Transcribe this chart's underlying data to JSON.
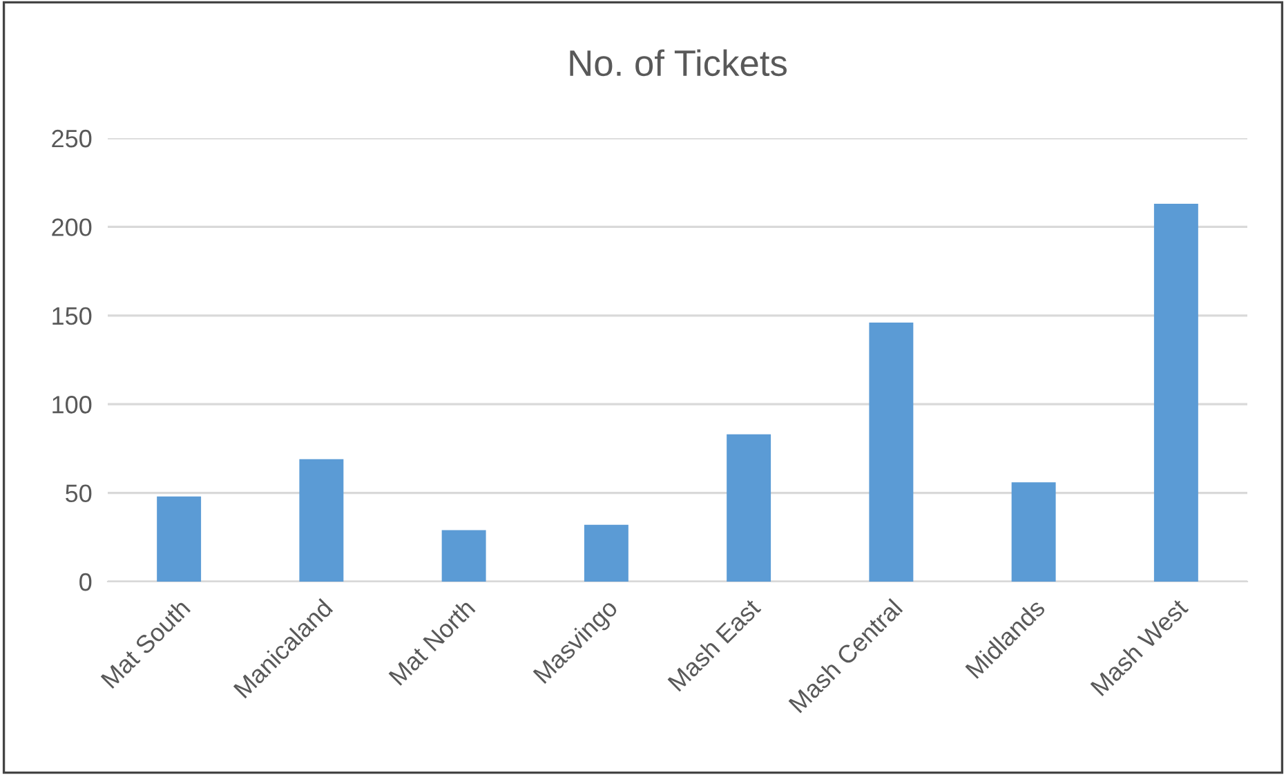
{
  "chart_data": {
    "type": "bar",
    "title": "No. of Tickets",
    "categories": [
      "Mat South",
      "Manicaland",
      "Mat North",
      "Masvingo",
      "Mash East",
      "Mash Central",
      "Midlands",
      "Mash West"
    ],
    "values": [
      48,
      69,
      29,
      32,
      83,
      146,
      56,
      213
    ],
    "color": "#5b9bd5",
    "ylim": [
      0,
      250
    ],
    "yticks": [
      0,
      50,
      100,
      150,
      200,
      250
    ],
    "grid": "y",
    "legend": false
  }
}
